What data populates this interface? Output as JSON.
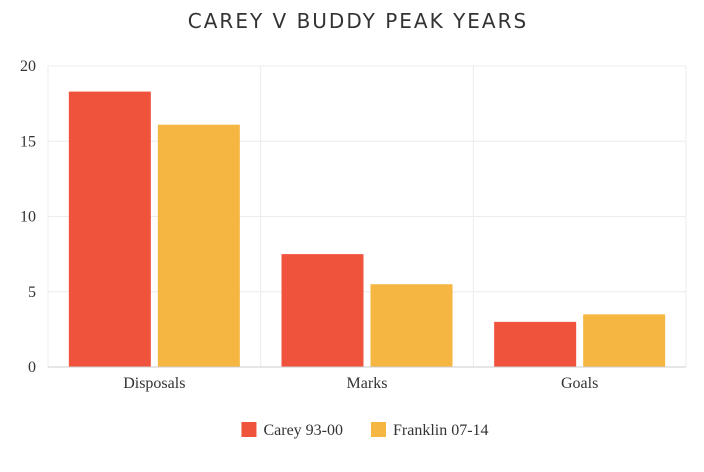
{
  "chart_data": {
    "type": "bar",
    "title": "CAREY V BUDDY PEAK YEARS",
    "xlabel": "",
    "ylabel": "",
    "categories": [
      "Disposals",
      "Marks",
      "Goals"
    ],
    "series": [
      {
        "name": "Carey 93-00",
        "color": "#f0533c",
        "values": [
          18.3,
          7.5,
          3.0
        ]
      },
      {
        "name": "Franklin 07-14",
        "color": "#f6b642",
        "values": [
          16.1,
          5.5,
          3.5
        ]
      }
    ],
    "ylim": [
      0,
      20
    ],
    "yticks": [
      "0",
      "5",
      "10",
      "15",
      "20"
    ],
    "grid": true,
    "legend": "bottom-center"
  }
}
